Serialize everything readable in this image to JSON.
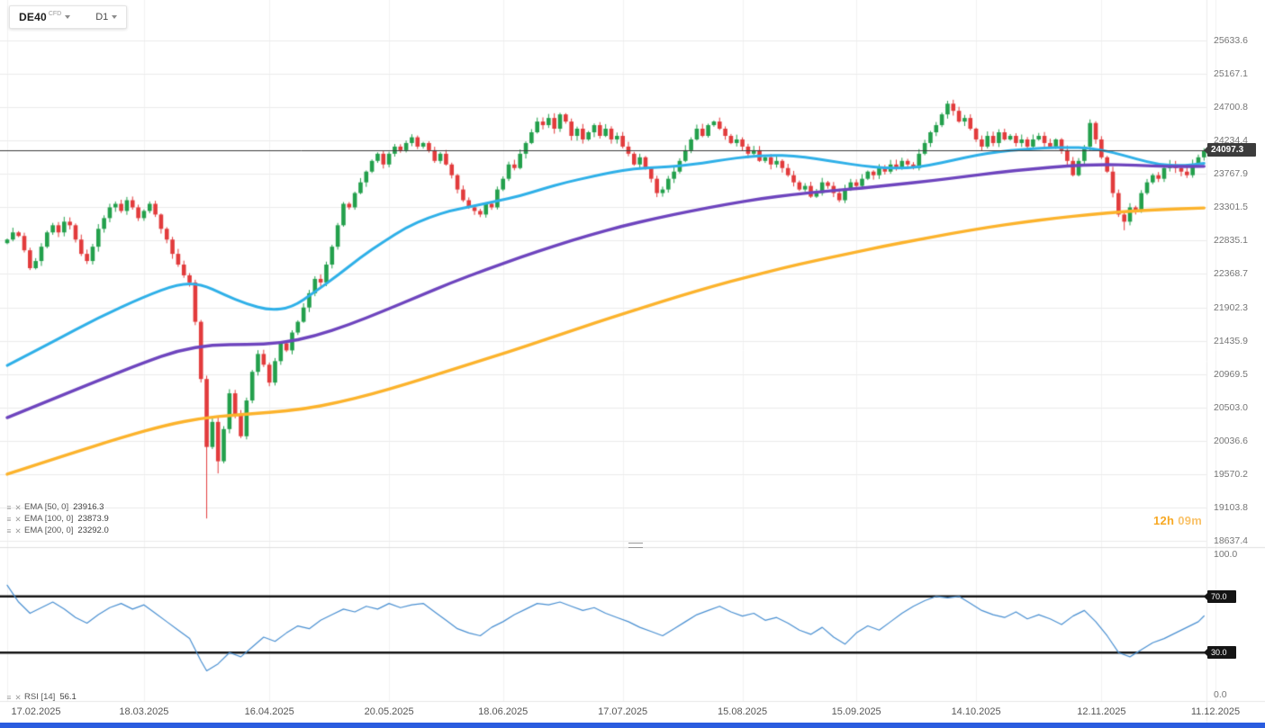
{
  "header": {
    "symbol": "DE40",
    "market_type": "CFD",
    "timeframe": "D1"
  },
  "countdown": {
    "hours": "12h",
    "minutes": "09m"
  },
  "icons": {
    "settings": "≡",
    "remove": "✕"
  },
  "colors": {
    "candle_up": "#23a04c",
    "candle_down": "#e23b3c",
    "grid": "#ececec",
    "grid_vertical": "#f2f2f2",
    "last_price_line": "#3c3c3c",
    "level_line": "#141414",
    "countdown": "#f7a823",
    "badge_bg": "#3c3c3c",
    "bottom_bar": "#2a5cdf"
  },
  "chart_data": {
    "type": "candlestick",
    "title": "DE40 CFD D1 with EMA 50/100/200 and RSI(14)",
    "last_price": 24097.3,
    "last_price_label": "24097.3",
    "x_axis": {
      "labels": [
        "17.02.2025",
        "18.03.2025",
        "16.04.2025",
        "20.05.2025",
        "18.06.2025",
        "17.07.2025",
        "15.08.2025",
        "15.09.2025",
        "14.10.2025",
        "12.11.2025",
        "11.12.2025"
      ],
      "label_indices": [
        0,
        24,
        46,
        67,
        87,
        108,
        129,
        149,
        170,
        192,
        212
      ]
    },
    "y_axis": {
      "tick_labels": [
        "25633.6",
        "25167.1",
        "24700.8",
        "24234.4",
        "23767.9",
        "23301.5",
        "22835.1",
        "22368.7",
        "21902.3",
        "21435.9",
        "20969.5",
        "20503.0",
        "20036.6",
        "19570.2",
        "19103.8",
        "18637.4"
      ]
    },
    "candles": {
      "note": "approximate daily closes read from chart, 17.02.2025 - 11.12.2025",
      "closes": [
        22850,
        22950,
        22900,
        22700,
        22450,
        22550,
        22750,
        22950,
        23050,
        22950,
        23100,
        23050,
        22850,
        22650,
        22550,
        22750,
        23000,
        23150,
        23300,
        23350,
        23250,
        23400,
        23300,
        23150,
        23250,
        23350,
        23200,
        23000,
        22850,
        22650,
        22500,
        22350,
        22250,
        21700,
        20900,
        19950,
        20300,
        19750,
        20200,
        20700,
        20400,
        20100,
        20600,
        21000,
        21250,
        21100,
        20850,
        21150,
        21400,
        21300,
        21550,
        21700,
        21900,
        22100,
        22300,
        22250,
        22500,
        22750,
        23050,
        23350,
        23300,
        23500,
        23650,
        23800,
        23950,
        24050,
        23900,
        24050,
        24150,
        24100,
        24200,
        24280,
        24150,
        24200,
        24100,
        23950,
        24050,
        23900,
        23750,
        23550,
        23400,
        23300,
        23250,
        23200,
        23350,
        23300,
        23550,
        23700,
        23900,
        23850,
        24050,
        24200,
        24350,
        24500,
        24450,
        24550,
        24400,
        24600,
        24500,
        24300,
        24400,
        24250,
        24350,
        24450,
        24300,
        24400,
        24250,
        24300,
        24150,
        24050,
        23900,
        24000,
        23850,
        23700,
        23500,
        23550,
        23700,
        23800,
        23950,
        24100,
        24250,
        24400,
        24300,
        24450,
        24500,
        24400,
        24300,
        24200,
        24250,
        24150,
        24050,
        24100,
        23950,
        24000,
        23900,
        23950,
        23850,
        23750,
        23650,
        23550,
        23600,
        23450,
        23500,
        23650,
        23600,
        23500,
        23400,
        23550,
        23650,
        23600,
        23700,
        23800,
        23750,
        23850,
        23800,
        23900,
        23850,
        23950,
        23900,
        23850,
        24050,
        24200,
        24350,
        24450,
        24600,
        24750,
        24650,
        24500,
        24550,
        24400,
        24250,
        24150,
        24300,
        24200,
        24350,
        24250,
        24300,
        24200,
        24250,
        24150,
        24250,
        24300,
        24200,
        24150,
        24250,
        24100,
        23950,
        23750,
        23950,
        24150,
        24480,
        24250,
        24000,
        23800,
        23500,
        23200,
        23100,
        23300,
        23250,
        23500,
        23650,
        23750,
        23700,
        23850,
        23900,
        23850,
        23800,
        23750,
        23900,
        24000,
        24097.3
      ],
      "wick_low_overrides": {
        "35": 18950,
        "37": 19580,
        "196": 22980
      },
      "wick_high_overrides": {
        "165": 24790,
        "190": 24530
      }
    },
    "overlays": [
      {
        "id": "ema50",
        "legend_label": "EMA [50, 0]",
        "legend_value": "23916.3",
        "color": "#2fb0e8",
        "width": 3,
        "points": [
          [
            0,
            21090
          ],
          [
            8,
            21420
          ],
          [
            16,
            21760
          ],
          [
            24,
            22050
          ],
          [
            30,
            22230
          ],
          [
            34,
            22230
          ],
          [
            38,
            22080
          ],
          [
            42,
            21950
          ],
          [
            46,
            21860
          ],
          [
            50,
            21900
          ],
          [
            54,
            22120
          ],
          [
            58,
            22350
          ],
          [
            62,
            22600
          ],
          [
            66,
            22820
          ],
          [
            70,
            23020
          ],
          [
            74,
            23160
          ],
          [
            78,
            23260
          ],
          [
            82,
            23320
          ],
          [
            86,
            23390
          ],
          [
            90,
            23460
          ],
          [
            94,
            23560
          ],
          [
            98,
            23650
          ],
          [
            102,
            23720
          ],
          [
            106,
            23790
          ],
          [
            110,
            23840
          ],
          [
            114,
            23860
          ],
          [
            118,
            23880
          ],
          [
            122,
            23920
          ],
          [
            126,
            23970
          ],
          [
            130,
            24010
          ],
          [
            134,
            24030
          ],
          [
            138,
            24020
          ],
          [
            142,
            23980
          ],
          [
            146,
            23930
          ],
          [
            150,
            23880
          ],
          [
            154,
            23850
          ],
          [
            158,
            23850
          ],
          [
            162,
            23890
          ],
          [
            166,
            23960
          ],
          [
            170,
            24030
          ],
          [
            174,
            24080
          ],
          [
            178,
            24110
          ],
          [
            182,
            24130
          ],
          [
            186,
            24140
          ],
          [
            190,
            24130
          ],
          [
            194,
            24070
          ],
          [
            198,
            23980
          ],
          [
            202,
            23900
          ],
          [
            206,
            23880
          ],
          [
            210,
            23916.3
          ]
        ]
      },
      {
        "id": "ema100",
        "legend_label": "EMA [100, 0]",
        "legend_value": "23873.9",
        "color": "#6e45be",
        "width": 3.4,
        "points": [
          [
            0,
            20360
          ],
          [
            8,
            20620
          ],
          [
            16,
            20880
          ],
          [
            24,
            21130
          ],
          [
            30,
            21300
          ],
          [
            36,
            21380
          ],
          [
            42,
            21380
          ],
          [
            48,
            21400
          ],
          [
            54,
            21500
          ],
          [
            60,
            21660
          ],
          [
            66,
            21850
          ],
          [
            72,
            22050
          ],
          [
            78,
            22250
          ],
          [
            84,
            22430
          ],
          [
            90,
            22600
          ],
          [
            96,
            22760
          ],
          [
            102,
            22910
          ],
          [
            108,
            23040
          ],
          [
            114,
            23150
          ],
          [
            120,
            23250
          ],
          [
            126,
            23340
          ],
          [
            132,
            23420
          ],
          [
            138,
            23480
          ],
          [
            144,
            23530
          ],
          [
            150,
            23570
          ],
          [
            156,
            23620
          ],
          [
            162,
            23670
          ],
          [
            168,
            23730
          ],
          [
            174,
            23790
          ],
          [
            180,
            23840
          ],
          [
            186,
            23880
          ],
          [
            192,
            23900
          ],
          [
            198,
            23890
          ],
          [
            204,
            23870
          ],
          [
            210,
            23873.9
          ]
        ]
      },
      {
        "id": "ema200",
        "legend_label": "EMA [200, 0]",
        "legend_value": "23292.0",
        "color": "#fcb32c",
        "width": 3.4,
        "points": [
          [
            0,
            19570
          ],
          [
            10,
            19830
          ],
          [
            20,
            20080
          ],
          [
            28,
            20260
          ],
          [
            34,
            20350
          ],
          [
            40,
            20400
          ],
          [
            46,
            20430
          ],
          [
            52,
            20480
          ],
          [
            58,
            20570
          ],
          [
            64,
            20690
          ],
          [
            70,
            20830
          ],
          [
            76,
            20980
          ],
          [
            82,
            21130
          ],
          [
            88,
            21280
          ],
          [
            94,
            21440
          ],
          [
            100,
            21600
          ],
          [
            106,
            21760
          ],
          [
            112,
            21910
          ],
          [
            118,
            22060
          ],
          [
            124,
            22200
          ],
          [
            130,
            22330
          ],
          [
            136,
            22450
          ],
          [
            142,
            22560
          ],
          [
            148,
            22660
          ],
          [
            154,
            22760
          ],
          [
            160,
            22850
          ],
          [
            166,
            22940
          ],
          [
            172,
            23020
          ],
          [
            178,
            23090
          ],
          [
            184,
            23150
          ],
          [
            190,
            23200
          ],
          [
            196,
            23240
          ],
          [
            202,
            23270
          ],
          [
            210,
            23292
          ]
        ]
      }
    ],
    "rsi": {
      "legend_label": "RSI [14]",
      "legend_value": "56.1",
      "color": "#4a90d2",
      "ylim": [
        0,
        100
      ],
      "scale_labels": {
        "top": "100.0",
        "bottom": "0.0"
      },
      "levels": [
        {
          "value": 70,
          "label": "70.0"
        },
        {
          "value": 30,
          "label": "30.0"
        }
      ],
      "points": [
        [
          0,
          78
        ],
        [
          2,
          66
        ],
        [
          4,
          58
        ],
        [
          6,
          62
        ],
        [
          8,
          66
        ],
        [
          10,
          61
        ],
        [
          12,
          55
        ],
        [
          14,
          51
        ],
        [
          16,
          57
        ],
        [
          18,
          62
        ],
        [
          20,
          65
        ],
        [
          22,
          61
        ],
        [
          24,
          64
        ],
        [
          26,
          58
        ],
        [
          28,
          52
        ],
        [
          30,
          46
        ],
        [
          32,
          40
        ],
        [
          34,
          24
        ],
        [
          35,
          17
        ],
        [
          37,
          22
        ],
        [
          39,
          30
        ],
        [
          41,
          27
        ],
        [
          43,
          34
        ],
        [
          45,
          41
        ],
        [
          47,
          38
        ],
        [
          49,
          44
        ],
        [
          51,
          49
        ],
        [
          53,
          47
        ],
        [
          55,
          53
        ],
        [
          57,
          57
        ],
        [
          59,
          61
        ],
        [
          61,
          59
        ],
        [
          63,
          63
        ],
        [
          65,
          61
        ],
        [
          67,
          65
        ],
        [
          69,
          62
        ],
        [
          71,
          64
        ],
        [
          73,
          65
        ],
        [
          75,
          59
        ],
        [
          77,
          53
        ],
        [
          79,
          47
        ],
        [
          81,
          44
        ],
        [
          83,
          42
        ],
        [
          85,
          48
        ],
        [
          87,
          52
        ],
        [
          89,
          57
        ],
        [
          91,
          61
        ],
        [
          93,
          65
        ],
        [
          95,
          64
        ],
        [
          97,
          66
        ],
        [
          99,
          63
        ],
        [
          101,
          60
        ],
        [
          103,
          62
        ],
        [
          105,
          58
        ],
        [
          107,
          55
        ],
        [
          109,
          52
        ],
        [
          111,
          48
        ],
        [
          113,
          45
        ],
        [
          115,
          42
        ],
        [
          117,
          47
        ],
        [
          119,
          52
        ],
        [
          121,
          57
        ],
        [
          123,
          60
        ],
        [
          125,
          63
        ],
        [
          127,
          59
        ],
        [
          129,
          56
        ],
        [
          131,
          58
        ],
        [
          133,
          53
        ],
        [
          135,
          55
        ],
        [
          137,
          51
        ],
        [
          139,
          46
        ],
        [
          141,
          43
        ],
        [
          143,
          48
        ],
        [
          145,
          41
        ],
        [
          147,
          36
        ],
        [
          149,
          44
        ],
        [
          151,
          49
        ],
        [
          153,
          46
        ],
        [
          155,
          52
        ],
        [
          157,
          58
        ],
        [
          159,
          63
        ],
        [
          161,
          67
        ],
        [
          163,
          70
        ],
        [
          165,
          69
        ],
        [
          167,
          70
        ],
        [
          169,
          65
        ],
        [
          171,
          60
        ],
        [
          173,
          57
        ],
        [
          175,
          55
        ],
        [
          177,
          59
        ],
        [
          179,
          54
        ],
        [
          181,
          57
        ],
        [
          183,
          54
        ],
        [
          185,
          50
        ],
        [
          187,
          56
        ],
        [
          189,
          60
        ],
        [
          191,
          52
        ],
        [
          193,
          42
        ],
        [
          195,
          30
        ],
        [
          197,
          27
        ],
        [
          199,
          32
        ],
        [
          201,
          37
        ],
        [
          203,
          40
        ],
        [
          205,
          44
        ],
        [
          207,
          48
        ],
        [
          209,
          52
        ],
        [
          210,
          56.1
        ]
      ]
    }
  }
}
